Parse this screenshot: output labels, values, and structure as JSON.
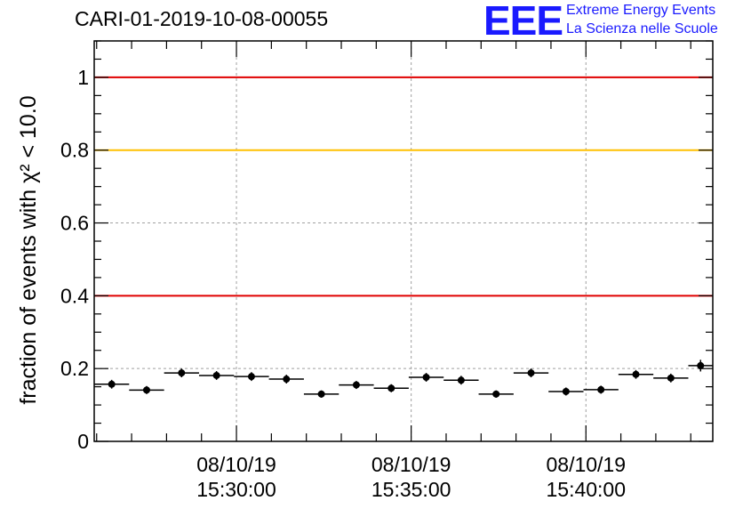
{
  "title": "CARI-01-2019-10-08-00055",
  "logo": {
    "mark": "EEE",
    "line1": "Extreme Energy Events",
    "line2": "La Scienza nelle Scuole",
    "color": "#1a1aff"
  },
  "chart_data": {
    "type": "scatter",
    "title": "CARI-01-2019-10-08-00055",
    "ylabel": "fraction of events with χ² < 10.0",
    "ylim": [
      0,
      1.1
    ],
    "y_ticks": [
      {
        "value": 0,
        "label": "0"
      },
      {
        "value": 0.2,
        "label": "0.2"
      },
      {
        "value": 0.4,
        "label": "0.4"
      },
      {
        "value": 0.6,
        "label": "0.6"
      },
      {
        "value": 0.8,
        "label": "0.8"
      },
      {
        "value": 1,
        "label": "1"
      }
    ],
    "x_unit": "minutes after 15:25:56",
    "xlim": [
      0,
      17.7
    ],
    "x_ticks": [
      {
        "value": 4.07,
        "date": "08/10/19",
        "time": "15:30:00"
      },
      {
        "value": 9.07,
        "date": "08/10/19",
        "time": "15:35:00"
      },
      {
        "value": 14.07,
        "date": "08/10/19",
        "time": "15:40:00"
      }
    ],
    "reference_lines": [
      {
        "value": 1.0,
        "color": "#e00000"
      },
      {
        "value": 0.8,
        "color": "#ffc000"
      },
      {
        "value": 0.4,
        "color": "#e00000"
      }
    ],
    "bin_width": 1.0,
    "x": [
      0.5,
      1.5,
      2.5,
      3.5,
      4.5,
      5.5,
      6.5,
      7.5,
      8.5,
      9.5,
      10.5,
      11.5,
      12.5,
      13.5,
      14.5,
      15.5,
      16.5,
      17.35
    ],
    "values": [
      0.157,
      0.141,
      0.188,
      0.181,
      0.178,
      0.171,
      0.13,
      0.155,
      0.146,
      0.176,
      0.168,
      0.13,
      0.188,
      0.137,
      0.142,
      0.184,
      0.174,
      0.208
    ],
    "errors": [
      0.012,
      0.011,
      0.012,
      0.012,
      0.012,
      0.012,
      0.01,
      0.011,
      0.011,
      0.012,
      0.012,
      0.01,
      0.012,
      0.011,
      0.011,
      0.012,
      0.012,
      0.016
    ],
    "grid": true,
    "legend": "none"
  }
}
